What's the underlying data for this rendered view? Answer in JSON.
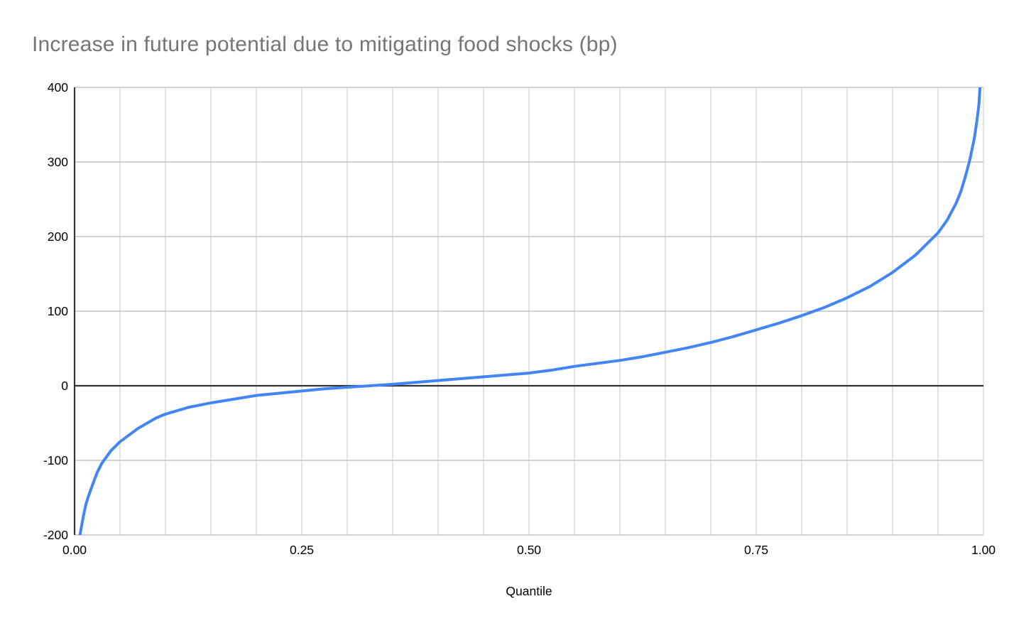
{
  "chart_data": {
    "type": "line",
    "title": "Increase in future potential due to mitigating food shocks (bp)",
    "xlabel": "Quantile",
    "ylabel": "",
    "xlim": [
      0.0,
      1.0
    ],
    "ylim": [
      -200,
      400
    ],
    "x_ticks": [
      {
        "value": 0.0,
        "label": "0.00"
      },
      {
        "value": 0.25,
        "label": "0.25"
      },
      {
        "value": 0.5,
        "label": "0.50"
      },
      {
        "value": 0.75,
        "label": "0.75"
      },
      {
        "value": 1.0,
        "label": "1.00"
      }
    ],
    "y_ticks": [
      {
        "value": 400,
        "label": "400"
      },
      {
        "value": 300,
        "label": "300"
      },
      {
        "value": 200,
        "label": "200"
      },
      {
        "value": 100,
        "label": "100"
      },
      {
        "value": 0,
        "label": "0"
      },
      {
        "value": -100,
        "label": "-100"
      },
      {
        "value": -200,
        "label": "-200"
      }
    ],
    "x_minor_grid_step": 0.05,
    "grid": true,
    "zero_baseline": true,
    "legend_position": "none",
    "colors": {
      "series_line": "#4285f4",
      "grid_major_horizontal": "#cccccc",
      "grid_minor_vertical": "#e0e0e0",
      "axis_and_zero_line": "#333333",
      "title_text": "#757575",
      "tick_label_text": "#000000"
    },
    "series": [
      {
        "name": "Increase in future potential due to mitigating food shocks (bp)",
        "color": "#4285f4",
        "points": [
          [
            0.006,
            -200
          ],
          [
            0.008,
            -186
          ],
          [
            0.01,
            -173
          ],
          [
            0.0125,
            -159
          ],
          [
            0.015,
            -149
          ],
          [
            0.02,
            -132
          ],
          [
            0.025,
            -116
          ],
          [
            0.03,
            -104
          ],
          [
            0.04,
            -87
          ],
          [
            0.05,
            -75
          ],
          [
            0.06,
            -66
          ],
          [
            0.07,
            -57
          ],
          [
            0.08,
            -50
          ],
          [
            0.09,
            -43
          ],
          [
            0.1,
            -38
          ],
          [
            0.125,
            -29
          ],
          [
            0.15,
            -23
          ],
          [
            0.175,
            -18
          ],
          [
            0.2,
            -13
          ],
          [
            0.225,
            -10
          ],
          [
            0.25,
            -7
          ],
          [
            0.275,
            -4
          ],
          [
            0.3,
            -2
          ],
          [
            0.325,
            0
          ],
          [
            0.35,
            2
          ],
          [
            0.375,
            4.5
          ],
          [
            0.4,
            7
          ],
          [
            0.425,
            9.5
          ],
          [
            0.45,
            12
          ],
          [
            0.475,
            14.5
          ],
          [
            0.5,
            17
          ],
          [
            0.525,
            21
          ],
          [
            0.55,
            26
          ],
          [
            0.575,
            30
          ],
          [
            0.6,
            34
          ],
          [
            0.625,
            39
          ],
          [
            0.65,
            45
          ],
          [
            0.675,
            51
          ],
          [
            0.7,
            58
          ],
          [
            0.725,
            66
          ],
          [
            0.75,
            75
          ],
          [
            0.775,
            84
          ],
          [
            0.8,
            94
          ],
          [
            0.825,
            105
          ],
          [
            0.85,
            118
          ],
          [
            0.875,
            133
          ],
          [
            0.9,
            152
          ],
          [
            0.925,
            175
          ],
          [
            0.95,
            205
          ],
          [
            0.96,
            222
          ],
          [
            0.97,
            245
          ],
          [
            0.975,
            260
          ],
          [
            0.98,
            280
          ],
          [
            0.985,
            303
          ],
          [
            0.99,
            332
          ],
          [
            0.993,
            357
          ],
          [
            0.995,
            377
          ],
          [
            0.9962,
            400
          ]
        ]
      }
    ]
  }
}
